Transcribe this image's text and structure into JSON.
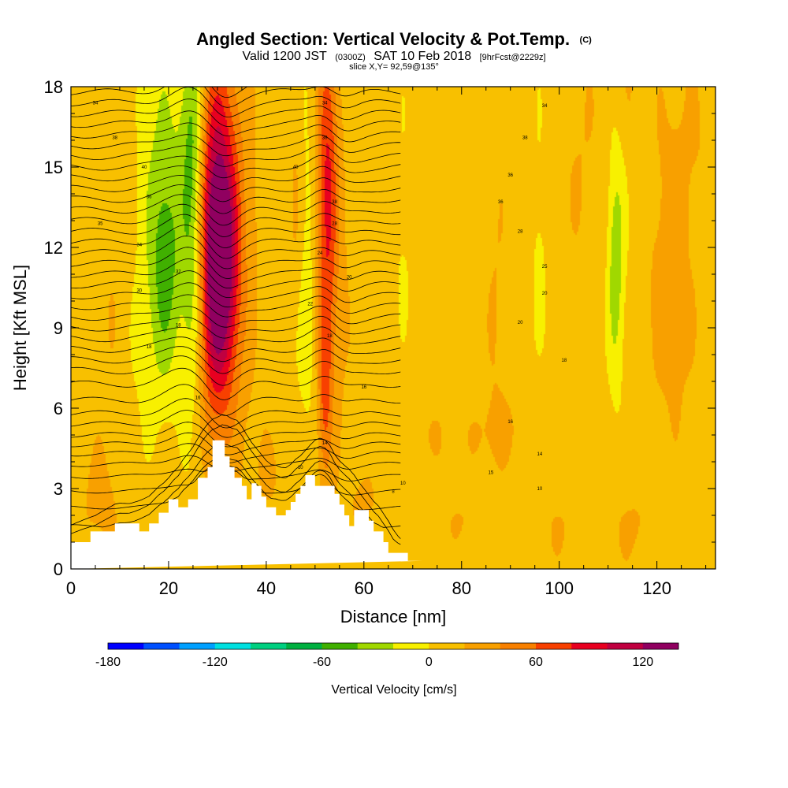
{
  "title": {
    "main": "Angled Section: Vertical Velocity & Pot.Temp.",
    "units_tag": "(C)",
    "valid_prefix": "Valid 1200 JST",
    "valid_zulu": "(0300Z)",
    "valid_date": "SAT 10 Feb 2018",
    "forecast": "[9hrFcst@2229z]",
    "slice": "slice X,Y= 92,59@135°"
  },
  "chart_data": {
    "type": "heatmap",
    "xlabel": "Distance [nm]",
    "ylabel": "Height [Kft MSL]",
    "xlim": [
      0,
      132
    ],
    "ylim": [
      0,
      18
    ],
    "x_ticks": [
      0,
      20,
      40,
      60,
      80,
      100,
      120
    ],
    "x_tick_labels": [
      "0",
      "20",
      "40",
      "60",
      "80",
      "100",
      "120"
    ],
    "y_ticks": [
      0,
      3,
      6,
      9,
      12,
      15,
      18
    ],
    "y_tick_labels": [
      "0",
      "3",
      "6",
      "9",
      "12",
      "15",
      "18"
    ],
    "background_level_cm_s": 0,
    "velocity_features": [
      {
        "x": 30.5,
        "y": 11.5,
        "sx": 2.5,
        "sy": 3.0,
        "value": 110
      },
      {
        "x": 31.0,
        "y": 12.5,
        "sx": 4.5,
        "sy": 6.0,
        "value": 40
      },
      {
        "x": 29.5,
        "y": 15.5,
        "sx": 2.5,
        "sy": 4.0,
        "value": 35
      },
      {
        "x": 29.0,
        "y": 7.5,
        "sx": 3.0,
        "sy": 2.5,
        "value": 20
      },
      {
        "x": 25.0,
        "y": 12.0,
        "sx": 1.7,
        "sy": 5.0,
        "value": -55
      },
      {
        "x": 25.0,
        "y": 16.5,
        "sx": 1.7,
        "sy": 2.5,
        "value": -25
      },
      {
        "x": 19.5,
        "y": 11.0,
        "sx": 2.3,
        "sy": 3.0,
        "value": -45
      },
      {
        "x": 18.5,
        "y": 15.5,
        "sx": 4.0,
        "sy": 4.5,
        "value": -25
      },
      {
        "x": 14.0,
        "y": 8.0,
        "sx": 3.0,
        "sy": 3.0,
        "value": -12
      },
      {
        "x": 9.0,
        "y": 11.0,
        "sx": 3.5,
        "sy": 8.0,
        "value": 12
      },
      {
        "x": 5.0,
        "y": 2.5,
        "sx": 3.5,
        "sy": 1.5,
        "value": 12
      },
      {
        "x": 52.5,
        "y": 14.5,
        "sx": 1.5,
        "sy": 4.5,
        "value": 70
      },
      {
        "x": 52.0,
        "y": 6.5,
        "sx": 1.0,
        "sy": 2.5,
        "value": 45
      },
      {
        "x": 54.5,
        "y": 10.0,
        "sx": 2.5,
        "sy": 5.0,
        "value": 15
      },
      {
        "x": 48.5,
        "y": 12.0,
        "sx": 1.3,
        "sy": 5.0,
        "value": -15
      },
      {
        "x": 47.5,
        "y": 8.5,
        "sx": 2.0,
        "sy": 2.0,
        "value": -8
      },
      {
        "x": 68.0,
        "y": 13.0,
        "sx": 2.0,
        "sy": 3.5,
        "value": -10
      },
      {
        "x": 87.0,
        "y": 11.0,
        "sx": 2.0,
        "sy": 6.0,
        "value": 12
      },
      {
        "x": 96.0,
        "y": 12.5,
        "sx": 1.5,
        "sy": 4.0,
        "value": -12
      },
      {
        "x": 111.5,
        "y": 11.0,
        "sx": 1.2,
        "sy": 3.0,
        "value": -40
      },
      {
        "x": 113.0,
        "y": 15.5,
        "sx": 2.0,
        "sy": 3.0,
        "value": -15
      },
      {
        "x": 114.0,
        "y": 17.5,
        "sx": 2.0,
        "sy": 2.5,
        "value": 18
      },
      {
        "x": 105.0,
        "y": 15.0,
        "sx": 4.0,
        "sy": 4.0,
        "value": 12
      },
      {
        "x": 122.0,
        "y": 13.0,
        "sx": 3.5,
        "sy": 4.5,
        "value": 15
      },
      {
        "x": 124.0,
        "y": 8.0,
        "sx": 4.0,
        "sy": 3.0,
        "value": 10
      },
      {
        "x": 128.0,
        "y": 16.0,
        "sx": 3.0,
        "sy": 3.0,
        "value": 10
      },
      {
        "x": 72.0,
        "y": 5.0,
        "sx": 4.0,
        "sy": 1.0,
        "value": 12
      },
      {
        "x": 85.0,
        "y": 5.0,
        "sx": 5.0,
        "sy": 1.0,
        "value": 10
      },
      {
        "x": 98.0,
        "y": 5.5,
        "sx": 6.0,
        "sy": 1.2,
        "value": 10
      },
      {
        "x": 115.0,
        "y": 1.5,
        "sx": 4.0,
        "sy": 1.2,
        "value": 14
      },
      {
        "x": 100.0,
        "y": 1.5,
        "sx": 4.0,
        "sy": 1.2,
        "value": 12
      },
      {
        "x": 80.0,
        "y": 1.8,
        "sx": 5.0,
        "sy": 1.0,
        "value": 12
      },
      {
        "x": 60.0,
        "y": 2.5,
        "sx": 3.0,
        "sy": 1.0,
        "value": 14
      },
      {
        "x": 41.0,
        "y": 3.5,
        "sx": 3.0,
        "sy": 1.5,
        "value": 12
      },
      {
        "x": 46.0,
        "y": 13.5,
        "sx": 1.0,
        "sy": 3.0,
        "value": 15
      }
    ],
    "terrain": {
      "x": [
        0,
        4,
        4,
        9,
        9,
        14,
        14,
        16,
        16,
        18,
        18,
        20,
        20,
        22,
        22,
        24,
        24,
        26,
        26,
        28,
        28,
        29,
        29,
        31.5,
        31.5,
        32.5,
        32.5,
        33.5,
        33.5,
        35,
        35,
        36,
        36,
        37,
        37,
        38,
        38,
        39,
        39,
        40,
        40,
        42,
        42,
        44,
        44,
        45,
        45,
        46,
        46,
        47,
        47,
        48,
        48,
        50,
        50,
        54,
        54,
        55,
        55,
        56,
        56,
        57,
        57,
        58,
        58,
        61,
        61,
        62,
        62,
        64,
        64,
        65,
        65,
        69,
        69,
        72,
        72,
        132
      ],
      "y": [
        1,
        1,
        1.4,
        1.4,
        1.7,
        1.7,
        1.4,
        1.4,
        1.7,
        1.7,
        2.1,
        2.1,
        2.6,
        2.6,
        2.3,
        2.3,
        2.6,
        2.6,
        3.4,
        3.4,
        3.8,
        3.8,
        4.8,
        4.8,
        4.2,
        4.2,
        3.8,
        3.8,
        3.4,
        3.4,
        3.1,
        3.1,
        2.6,
        2.6,
        3.2,
        3.2,
        3.1,
        3.1,
        2.7,
        2.7,
        2.3,
        2.3,
        2,
        2,
        2.2,
        2.2,
        2.5,
        2.5,
        2.8,
        2.8,
        3.1,
        3.1,
        3.5,
        3.5,
        3.1,
        3.1,
        2.8,
        2.8,
        2.4,
        2.4,
        2,
        2,
        1.6,
        1.6,
        2.2,
        2.2,
        1.8,
        1.8,
        1.4,
        1.4,
        1,
        1,
        0.6,
        0.6,
        0.3,
        0.3
      ]
    },
    "theta_isotherms": {
      "top_height": 18.3,
      "low_levels": [
        {
          "base": 0.2,
          "label": "-6",
          "label_x": 0
        },
        {
          "base": 0.9,
          "label": "-4",
          "label_x": 0
        },
        {
          "base": 1.6,
          "label": "-2",
          "label_x": 0
        },
        {
          "base": 2.3,
          "label": "0",
          "label_x": 0
        },
        {
          "base": 2.9,
          "label": "2",
          "label_x": 0
        },
        {
          "base": 3.45,
          "label": "4",
          "label_x": 0
        },
        {
          "base": 3.9,
          "label": "6",
          "label_x": 0
        },
        {
          "base": 4.3,
          "label": "8",
          "label_x": 72
        },
        {
          "base": 4.65,
          "label": "10",
          "label_x": 78
        },
        {
          "base": 5.0,
          "label": "12",
          "label_x": 0
        },
        {
          "base": 5.4,
          "label": "14",
          "label_x": 0
        },
        {
          "base": 5.8,
          "label": "15",
          "label_x": 85
        },
        {
          "base": 6.3,
          "label": "16",
          "label_x": 0
        },
        {
          "base": 6.9,
          "label": "18",
          "label_x": 0
        }
      ],
      "upper_start": 7.4,
      "upper_step": 0.4,
      "placed_labels": [
        {
          "x": 5,
          "y": 17.4,
          "label": "34"
        },
        {
          "x": 9,
          "y": 16.1,
          "label": "38"
        },
        {
          "x": 15,
          "y": 15.0,
          "label": "40"
        },
        {
          "x": 16,
          "y": 13.9,
          "label": "36"
        },
        {
          "x": 6,
          "y": 12.9,
          "label": "35"
        },
        {
          "x": 14,
          "y": 12.1,
          "label": "34"
        },
        {
          "x": 22,
          "y": 11.1,
          "label": "32"
        },
        {
          "x": 14,
          "y": 10.4,
          "label": "30"
        },
        {
          "x": 22,
          "y": 9.1,
          "label": "18"
        },
        {
          "x": 16,
          "y": 8.3,
          "label": "18"
        },
        {
          "x": 26,
          "y": 6.4,
          "label": "16"
        },
        {
          "x": 52,
          "y": 17.4,
          "label": "34"
        },
        {
          "x": 52,
          "y": 16.1,
          "label": "38"
        },
        {
          "x": 46,
          "y": 15.0,
          "label": "40"
        },
        {
          "x": 54,
          "y": 13.7,
          "label": "38"
        },
        {
          "x": 54,
          "y": 12.9,
          "label": "28"
        },
        {
          "x": 51,
          "y": 11.8,
          "label": "24"
        },
        {
          "x": 57,
          "y": 10.9,
          "label": "20"
        },
        {
          "x": 49,
          "y": 9.9,
          "label": "22"
        },
        {
          "x": 53,
          "y": 8.7,
          "label": "18"
        },
        {
          "x": 60,
          "y": 6.8,
          "label": "16"
        },
        {
          "x": 52,
          "y": 4.7,
          "label": "14"
        },
        {
          "x": 47,
          "y": 3.8,
          "label": "10"
        },
        {
          "x": 97,
          "y": 17.3,
          "label": "34"
        },
        {
          "x": 93,
          "y": 16.1,
          "label": "38"
        },
        {
          "x": 90,
          "y": 14.7,
          "label": "36"
        },
        {
          "x": 88,
          "y": 13.7,
          "label": "36"
        },
        {
          "x": 92,
          "y": 12.6,
          "label": "28"
        },
        {
          "x": 97,
          "y": 11.3,
          "label": "25"
        },
        {
          "x": 97,
          "y": 10.3,
          "label": "20"
        },
        {
          "x": 92,
          "y": 9.2,
          "label": "20"
        },
        {
          "x": 101,
          "y": 7.8,
          "label": "18"
        },
        {
          "x": 90,
          "y": 5.5,
          "label": "16"
        },
        {
          "x": 96,
          "y": 4.3,
          "label": "14"
        },
        {
          "x": 86,
          "y": 3.6,
          "label": "15"
        },
        {
          "x": 68,
          "y": 3.2,
          "label": "10"
        },
        {
          "x": 66,
          "y": 2.9,
          "label": "8"
        },
        {
          "x": 96,
          "y": 3.0,
          "label": "10"
        }
      ]
    },
    "colorbar": {
      "title": "Vertical Velocity [cm/s]",
      "min": -180,
      "max": 140,
      "step": 20,
      "colors": [
        "#0000ff",
        "#0050ff",
        "#00a0ff",
        "#00e0e0",
        "#00d080",
        "#00b040",
        "#40b000",
        "#a0d800",
        "#f8f000",
        "#f8c000",
        "#f8a000",
        "#f88000",
        "#f84000",
        "#e80020",
        "#c00040",
        "#900060"
      ],
      "tick_values": [
        -180,
        -120,
        -60,
        0,
        60,
        120
      ],
      "tick_labels": [
        "-180",
        "-120",
        "-60",
        "0",
        "60",
        "120"
      ]
    }
  }
}
